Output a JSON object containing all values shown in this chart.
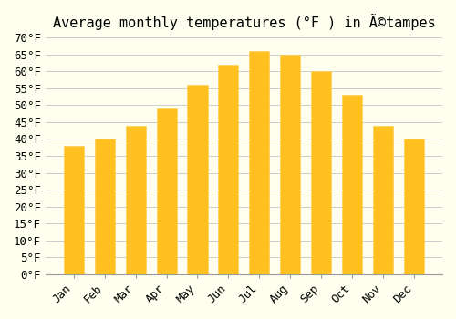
{
  "title": "Average monthly temperatures (°F ) in Ã©tampes",
  "months": [
    "Jan",
    "Feb",
    "Mar",
    "Apr",
    "May",
    "Jun",
    "Jul",
    "Aug",
    "Sep",
    "Oct",
    "Nov",
    "Dec"
  ],
  "values": [
    38,
    40,
    44,
    49,
    56,
    62,
    66,
    65,
    60,
    53,
    44,
    40
  ],
  "bar_color_face": "#FFC020",
  "bar_color_edge": "#FFD060",
  "ylim": [
    0,
    70
  ],
  "yticks": [
    0,
    5,
    10,
    15,
    20,
    25,
    30,
    35,
    40,
    45,
    50,
    55,
    60,
    65,
    70
  ],
  "ytick_labels": [
    "0°F",
    "5°F",
    "10°F",
    "15°F",
    "20°F",
    "25°F",
    "30°F",
    "35°F",
    "40°F",
    "45°F",
    "50°F",
    "55°F",
    "60°F",
    "65°F",
    "70°F"
  ],
  "background_color": "#FFFFF0",
  "grid_color": "#CCCCCC",
  "title_fontsize": 11,
  "tick_fontsize": 9,
  "font_family": "monospace"
}
